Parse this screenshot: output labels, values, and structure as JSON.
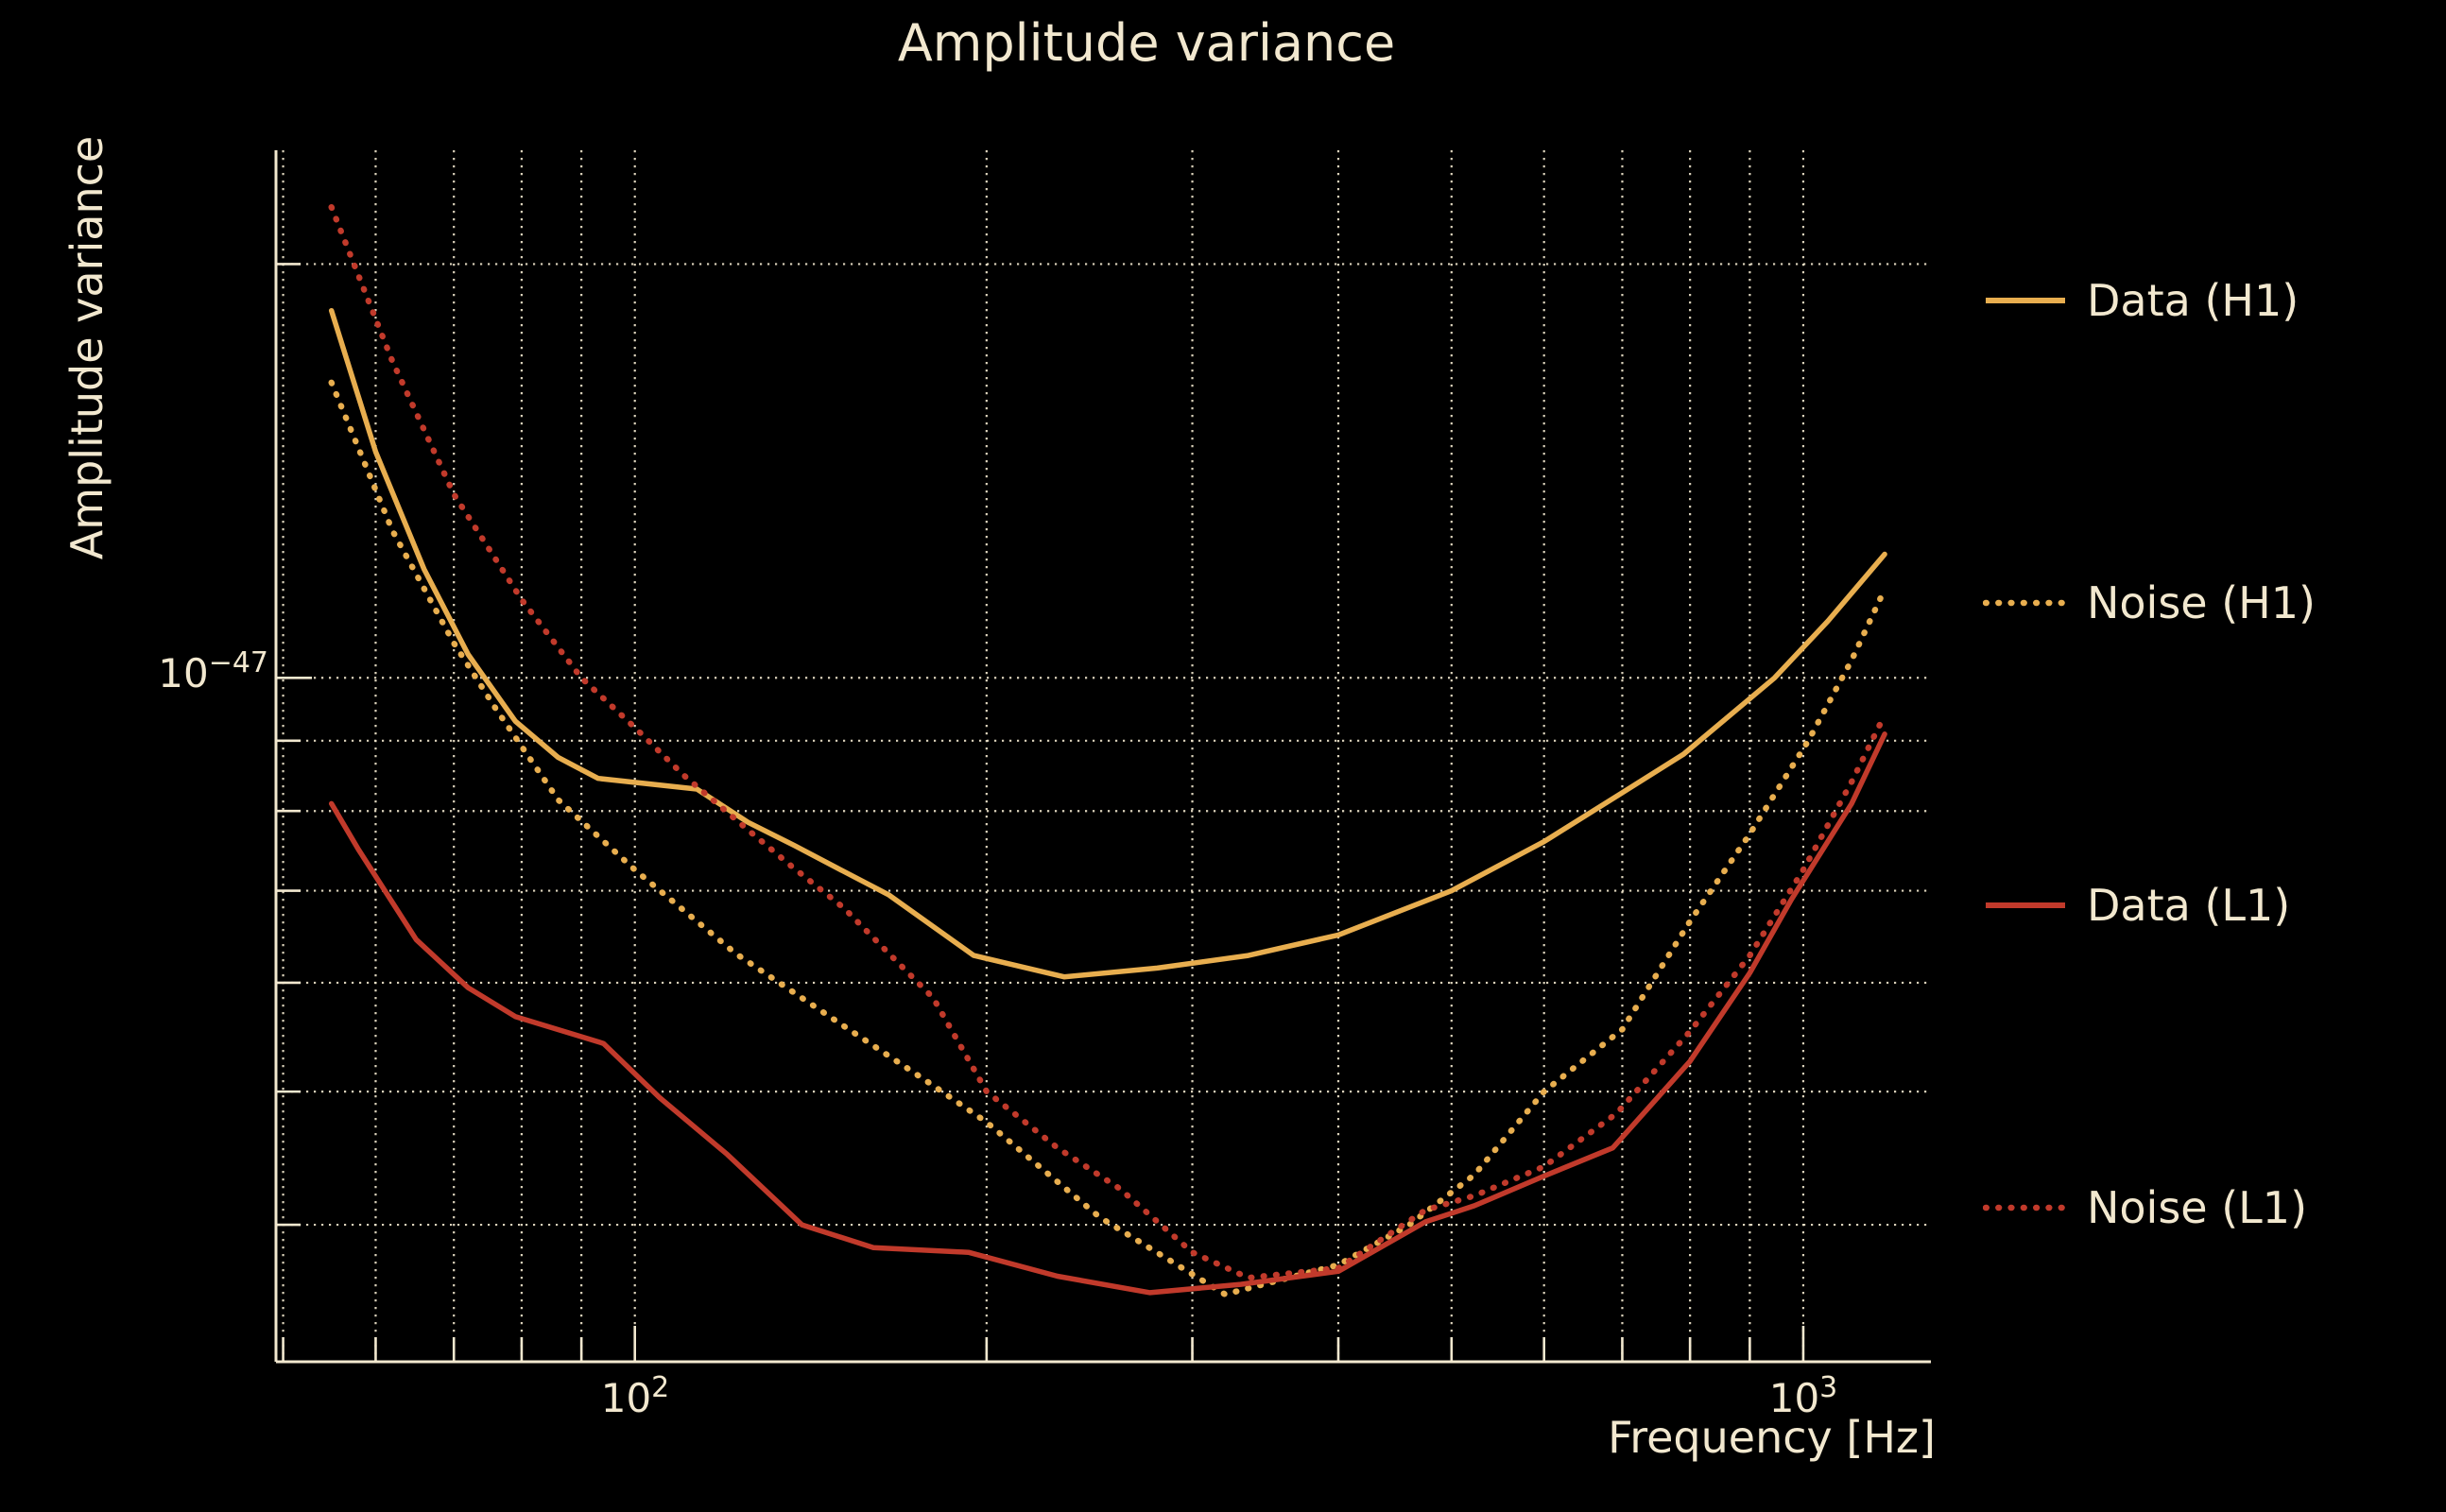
{
  "title": "Amplitude variance",
  "axes": {
    "xlabel": "Frequency [Hz]",
    "ylabel": "Amplitude variance",
    "x_ticks": [
      {
        "base": "10",
        "exp": "2"
      },
      {
        "base": "10",
        "exp": "3"
      }
    ],
    "y_ticks": [
      {
        "base": "10",
        "exp": "−47"
      }
    ]
  },
  "colors": {
    "background": "#000000",
    "text": "#F2E8CF",
    "grid": "#F2E8CF",
    "h1": "#E8AE4F",
    "l1": "#C13A2B"
  },
  "legend": {
    "position": "right",
    "entries": [
      {
        "label": "Data (H1)",
        "series_index": 0
      },
      {
        "label": "Noise (H1)",
        "series_index": 1
      },
      {
        "label": "Data (L1)",
        "series_index": 2
      },
      {
        "label": "Noise (L1)",
        "series_index": 3
      }
    ]
  },
  "chart_data": {
    "type": "line",
    "title": "Amplitude variance",
    "xlabel": "Frequency [Hz]",
    "ylabel": "Amplitude variance",
    "xscale": "log",
    "yscale": "log",
    "grid": true,
    "grid_style": "dotted",
    "xlim": [
      49.3,
      1286
    ],
    "ylim": [
      3.18e-48,
      2.42e-47
    ],
    "ylim_1e48": [
      3.18,
      24.2
    ],
    "value_unit": "values given in units of 1e-48",
    "gridlines": {
      "x": [
        50,
        60,
        70,
        80,
        90,
        100,
        200,
        300,
        400,
        500,
        600,
        700,
        800,
        900,
        1000
      ],
      "x_major": [
        100,
        1000
      ],
      "y_1e48": [
        4,
        5,
        6,
        7,
        8,
        9,
        10,
        20
      ],
      "y_major_1e48": [
        10
      ]
    },
    "series": [
      {
        "name": "Data (H1)",
        "color": "#E8AE4F",
        "style": "solid",
        "x": [
          55,
          60,
          66,
          72,
          79,
          86,
          93,
          113,
          125,
          137,
          150,
          165,
          195,
          233,
          280,
          335,
          400,
          500,
          600,
          700,
          790,
          945,
          1050,
          1174
        ],
        "v_1e48": [
          18.5,
          14.6,
          12.0,
          10.4,
          9.3,
          8.75,
          8.45,
          8.3,
          7.85,
          7.55,
          7.25,
          6.95,
          6.28,
          6.06,
          6.15,
          6.28,
          6.5,
          7.0,
          7.6,
          8.25,
          8.8,
          10.0,
          11.0,
          12.3
        ]
      },
      {
        "name": "Noise (H1)",
        "color": "#E8AE4F",
        "style": "dotted",
        "x": [
          55,
          62,
          70,
          76,
          86,
          100,
          122,
          150,
          177,
          200,
          250,
          320,
          400,
          460,
          523,
          600,
          700,
          800,
          900,
          1010,
          1100,
          1174
        ],
        "v_1e48": [
          16.4,
          12.8,
          10.6,
          9.5,
          8.15,
          7.25,
          6.3,
          5.6,
          5.1,
          4.75,
          4.05,
          3.56,
          3.74,
          4.0,
          4.35,
          5.0,
          5.55,
          6.65,
          7.7,
          9.0,
          10.3,
          11.6
        ]
      },
      {
        "name": "Data (L1)",
        "color": "#C13A2B",
        "style": "solid",
        "x": [
          55,
          58,
          65,
          72,
          79,
          94,
          105,
          120,
          139,
          160,
          193,
          230,
          276,
          330,
          400,
          475,
          523,
          600,
          687,
          800,
          900,
          977,
          1100,
          1174
        ],
        "v_1e48": [
          8.1,
          7.5,
          6.45,
          5.95,
          5.67,
          5.42,
          4.95,
          4.5,
          4.0,
          3.85,
          3.82,
          3.67,
          3.57,
          3.62,
          3.7,
          4.02,
          4.13,
          4.34,
          4.55,
          5.26,
          6.1,
          6.9,
          8.1,
          9.1
        ]
      },
      {
        "name": "Noise (L1)",
        "color": "#C13A2B",
        "style": "dotted",
        "x": [
          55,
          62,
          70,
          80,
          90,
          100,
          110,
          125,
          136,
          151,
          165,
          180,
          200,
          230,
          260,
          300,
          335,
          400,
          475,
          523,
          600,
          692,
          800,
          900,
          1000,
          1100,
          1174
        ],
        "v_1e48": [
          22.0,
          17.0,
          13.6,
          11.4,
          10.0,
          9.2,
          8.5,
          7.75,
          7.3,
          6.8,
          6.3,
          5.85,
          5.0,
          4.55,
          4.25,
          3.82,
          3.66,
          3.72,
          4.1,
          4.2,
          4.41,
          4.82,
          5.53,
          6.28,
          7.25,
          8.4,
          9.4
        ]
      }
    ]
  }
}
